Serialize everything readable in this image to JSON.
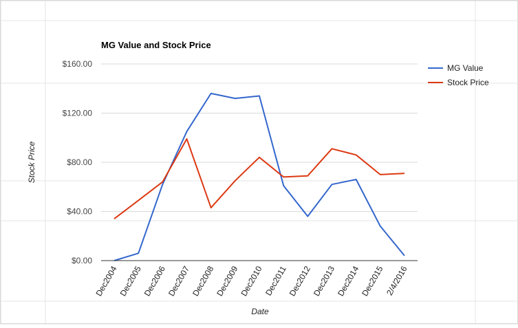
{
  "chart_data": {
    "type": "line",
    "title": "MG Value and Stock Price",
    "xlabel": "Date",
    "ylabel": "Stock Price",
    "categories": [
      "Dec2004",
      "Dec2005",
      "Dec2006",
      "Dec2007",
      "Dec2008",
      "Dec2009",
      "Dec2010",
      "Dec2011",
      "Dec2012",
      "Dec2013",
      "Dec2014",
      "Dec2015",
      "2/4/2016"
    ],
    "series": [
      {
        "name": "MG Value",
        "color": "#3366cc",
        "values": [
          0,
          6,
          62,
          105,
          136,
          132,
          134,
          61,
          36,
          62,
          66,
          28,
          4
        ]
      },
      {
        "name": "Stock Price",
        "color": "#dc3912",
        "values": [
          34,
          49,
          64,
          99,
          43,
          65,
          84,
          68,
          69,
          91,
          86,
          70,
          71
        ]
      }
    ],
    "ylim": [
      0,
      160
    ],
    "y_ticks": [
      0,
      40,
      80,
      120,
      160
    ],
    "y_tick_labels": [
      "$0.00",
      "$40.00",
      "$80.00",
      "$120.00",
      "$160.00"
    ],
    "grid": true,
    "legend_position": "right"
  }
}
